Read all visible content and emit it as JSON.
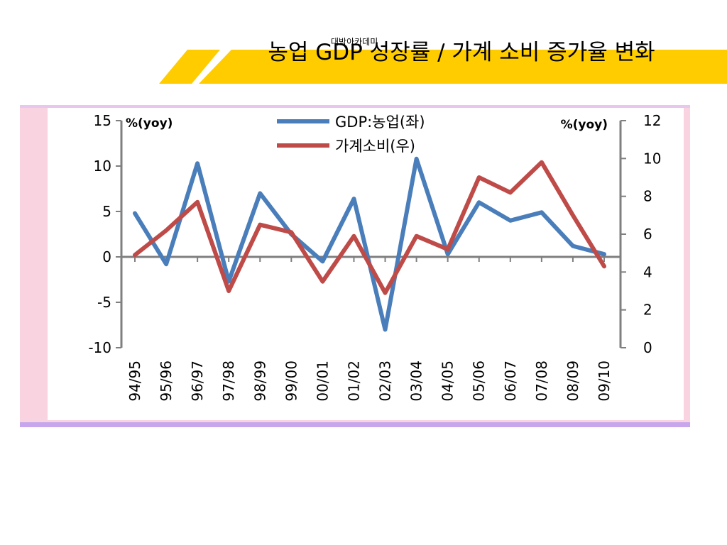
{
  "slide": {
    "title": "농업 GDP 성장률 / 가계 소비 증가율 변화",
    "watermark": "대박아카데미",
    "accent_color": "#FFCC00"
  },
  "chart_data": {
    "type": "line",
    "title": "",
    "categories": [
      "94/95",
      "95/96",
      "96/97",
      "97/98",
      "98/99",
      "99/00",
      "00/01",
      "01/02",
      "02/03",
      "03/04",
      "04/05",
      "05/06",
      "06/07",
      "07/08",
      "08/09",
      "09/10"
    ],
    "left_axis": {
      "unit_label": "%(yoy)",
      "range": [
        -10,
        15
      ],
      "ticks": [
        "15",
        "10",
        "5",
        "0",
        "-5",
        "-10"
      ]
    },
    "right_axis": {
      "unit_label": "%(yoy)",
      "range": [
        0,
        12
      ],
      "ticks": [
        "12",
        "10",
        "8",
        "6",
        "4",
        "2",
        "0"
      ]
    },
    "series": [
      {
        "name": "GDP:농업(좌)",
        "axis": "left",
        "color": "#4A7EBB",
        "values": [
          4.8,
          -0.8,
          10.3,
          -2.7,
          7.0,
          2.5,
          -0.5,
          6.4,
          -8.0,
          10.8,
          0.3,
          6.0,
          4.0,
          4.9,
          1.2,
          0.3
        ]
      },
      {
        "name": "가계소비(우)",
        "axis": "right",
        "color": "#BE4B48",
        "values": [
          4.9,
          6.2,
          7.7,
          3.0,
          6.5,
          6.1,
          3.5,
          5.9,
          2.9,
          5.9,
          5.2,
          9.0,
          8.2,
          9.8,
          7.0,
          4.3
        ]
      }
    ],
    "grid": false,
    "legend": "top-center"
  }
}
